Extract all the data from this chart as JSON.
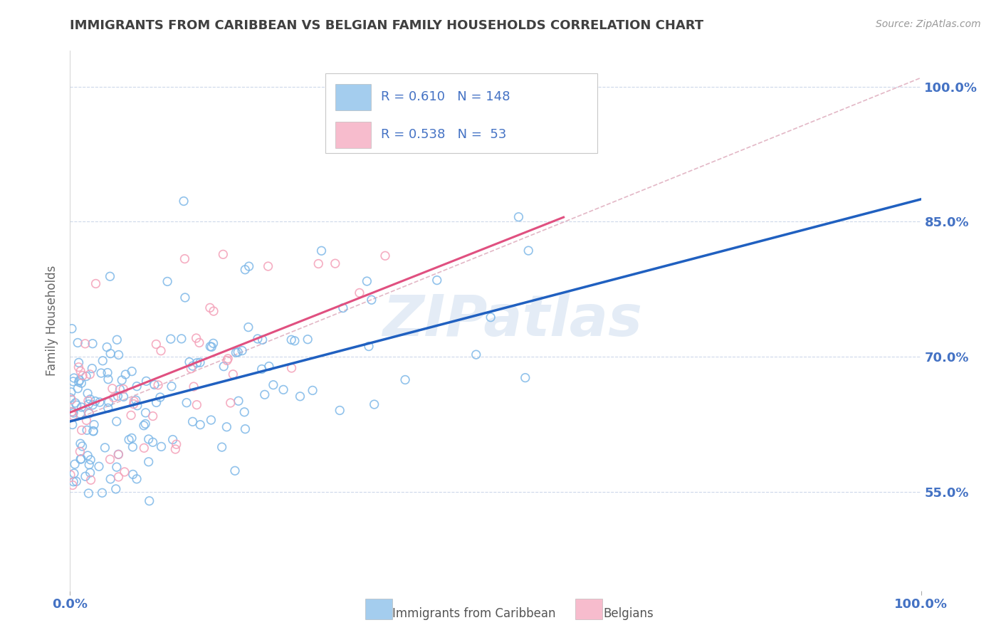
{
  "title": "IMMIGRANTS FROM CARIBBEAN VS BELGIAN FAMILY HOUSEHOLDS CORRELATION CHART",
  "source": "Source: ZipAtlas.com",
  "ylabel": "Family Households",
  "y_tick_values": [
    0.55,
    0.7,
    0.85,
    1.0
  ],
  "x_range": [
    0.0,
    1.0
  ],
  "y_range": [
    0.44,
    1.04
  ],
  "watermark": "ZIPatlas",
  "blue_color": "#7eb8e8",
  "pink_color": "#f4a0b8",
  "dashed_color": "#e0b0c0",
  "trend_blue_color": "#2060c0",
  "trend_pink_color": "#e05080",
  "background_color": "#ffffff",
  "grid_color": "#c8d4e8",
  "axis_color": "#4472c4",
  "title_color": "#404040",
  "blue_line_x0": 0.0,
  "blue_line_x1": 1.0,
  "blue_line_y0": 0.628,
  "blue_line_y1": 0.875,
  "pink_line_x0": 0.0,
  "pink_line_x1": 0.58,
  "pink_line_y0": 0.638,
  "pink_line_y1": 0.855,
  "dashed_line_x0": 0.0,
  "dashed_line_x1": 1.0,
  "dashed_line_y0": 0.628,
  "dashed_line_y1": 1.01,
  "legend_r1": "R = 0.610",
  "legend_n1": "N = 148",
  "legend_r2": "R = 0.538",
  "legend_n2": "N =  53",
  "bottom_label1": "Immigrants from Caribbean",
  "bottom_label2": "Belgians"
}
